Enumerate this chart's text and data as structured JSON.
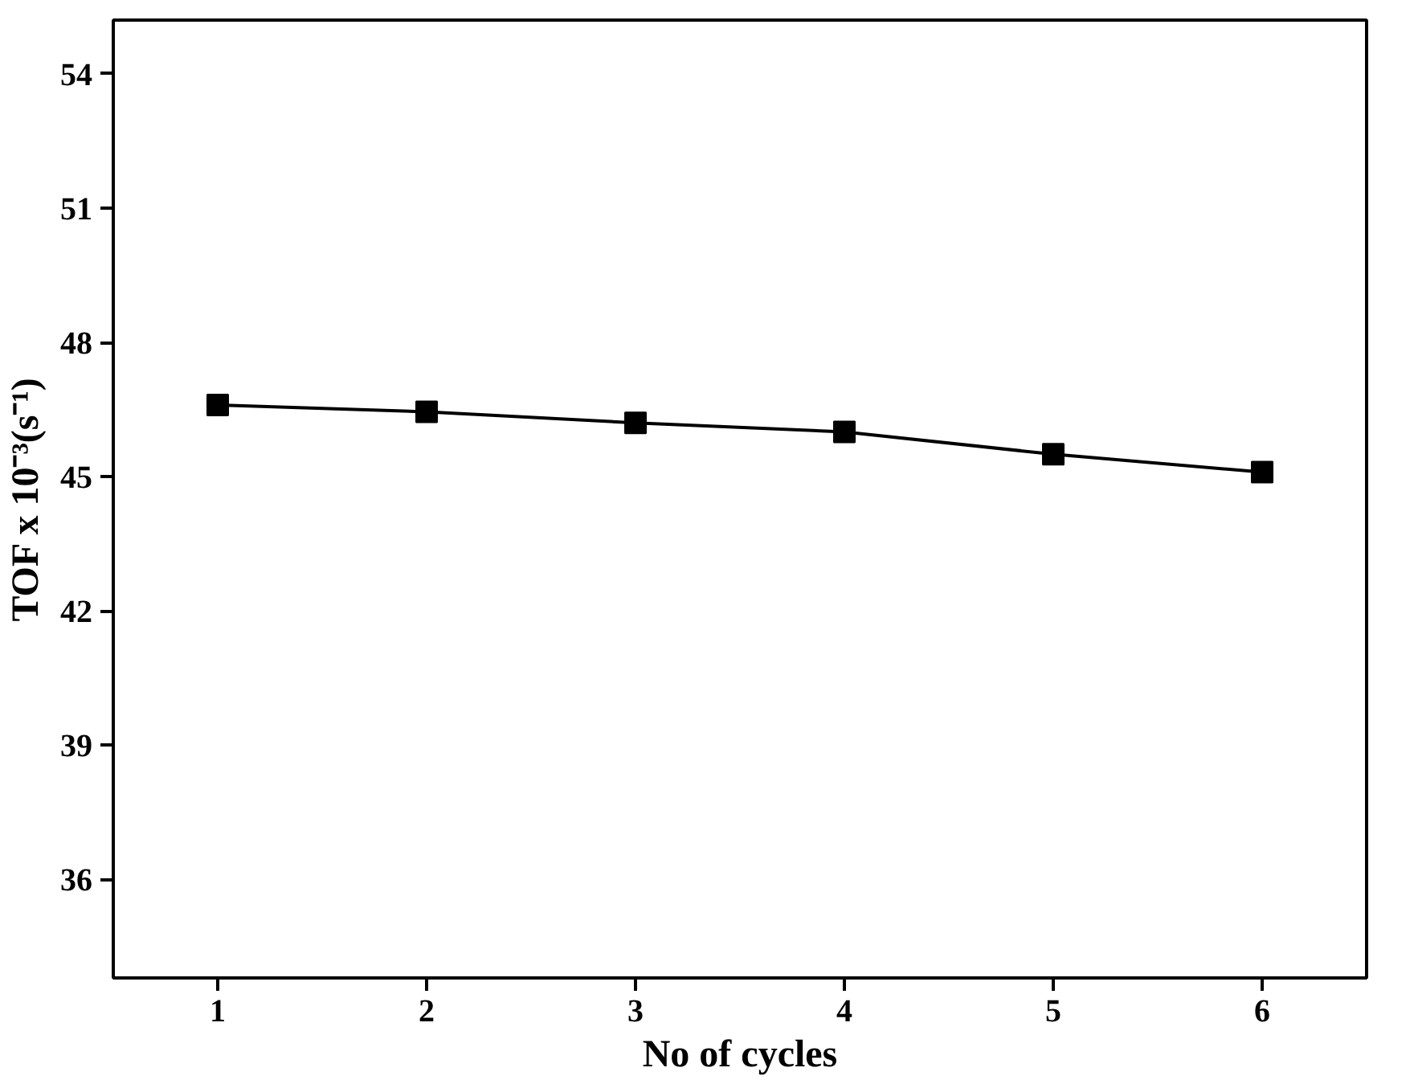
{
  "chart_data": {
    "type": "line",
    "xlabel": "No of cycles",
    "ylabel": "TOF x 10⁻³(s⁻¹)",
    "x": [
      1,
      2,
      3,
      4,
      5,
      6
    ],
    "series": [
      {
        "color": "#000000",
        "values": [
          46.6,
          46.45,
          46.2,
          46.0,
          45.5,
          45.1
        ]
      }
    ],
    "xlim": [
      0.5,
      6.5
    ],
    "xticks": [
      1,
      2,
      3,
      4,
      5,
      6
    ],
    "ylim": [
      33.8,
      55.2
    ],
    "yticks": [
      36,
      39,
      42,
      45,
      48,
      51,
      54
    ],
    "grid": false,
    "marker": "square",
    "line_style": "solid"
  }
}
